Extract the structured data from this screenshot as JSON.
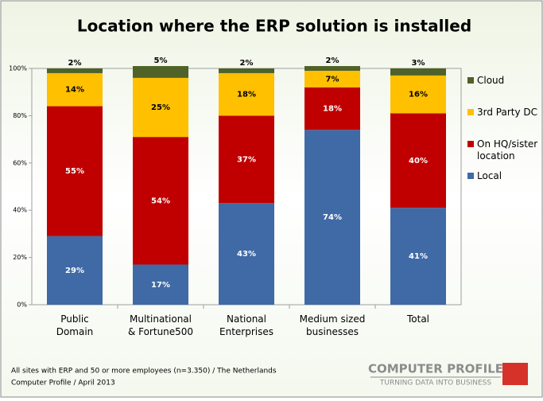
{
  "chart_data": {
    "type": "stacked_bar",
    "title": "Location where the ERP solution is installed",
    "categories": [
      "Public Domain",
      "Multinational & Fortune500",
      "National Enterprises",
      "Medium sized businesses",
      "Total"
    ],
    "series": [
      {
        "name": "Local",
        "color": "#3f6aa6",
        "values": [
          29,
          17,
          43,
          74,
          41
        ],
        "value_labels": [
          "29%",
          "17%",
          "43%",
          "74%",
          "41%"
        ]
      },
      {
        "name": "On HQ/sister location",
        "color": "#c00000",
        "values": [
          55,
          54,
          37,
          18,
          40
        ],
        "value_labels": [
          "55%",
          "54%",
          "37%",
          "18%",
          "40%"
        ]
      },
      {
        "name": "3rd Party DC",
        "color": "#ffc000",
        "values": [
          14,
          25,
          18,
          7,
          16
        ],
        "value_labels": [
          "14%",
          "25%",
          "18%",
          "7%",
          "16%"
        ]
      },
      {
        "name": "Cloud",
        "color": "#4f6228",
        "values": [
          2,
          5,
          2,
          2,
          3
        ],
        "value_labels": [
          "2%",
          "5%",
          "2%",
          "2%",
          "3%"
        ]
      }
    ],
    "ylim": [
      0,
      100
    ],
    "yticks": [
      {
        "value": 0,
        "label": "0%"
      },
      {
        "value": 20,
        "label": "20%"
      },
      {
        "value": 40,
        "label": "40%"
      },
      {
        "value": 60,
        "label": "60%"
      },
      {
        "value": 80,
        "label": "80%"
      },
      {
        "value": 100,
        "label": "100%"
      }
    ],
    "legend": "right",
    "footnotes": [
      "All sites with ERP and 50 or more employees (n=3.350) / The Netherlands",
      "Computer Profile / April 2013"
    ],
    "logo": {
      "name": "COMPUTER PROFILE",
      "tagline": "TURNING DATA INTO BUSINESS"
    }
  }
}
